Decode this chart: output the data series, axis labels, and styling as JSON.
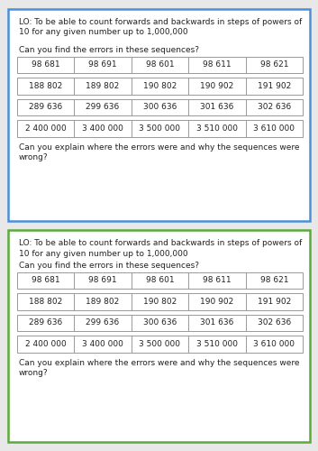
{
  "background": "#e8e8e8",
  "panel1": {
    "border_color": "#4a90d9",
    "lo_line1": "LO: To be able to count forwards and backwards in steps of powers of",
    "lo_line2": "10 for any given number up to 1,000,000",
    "question1": "Can you find the errors in these sequences?",
    "question2": "Can you explain where the errors were and why the sequences were",
    "question2b": "wrong?",
    "rows": [
      [
        "98 681",
        "98 691",
        "98 601",
        "98 611",
        "98 621"
      ],
      [
        "188 802",
        "189 802",
        "190 802",
        "190 902",
        "191 902"
      ],
      [
        "289 636",
        "299 636",
        "300 636",
        "301 636",
        "302 636"
      ],
      [
        "2 400 000",
        "3 400 000",
        "3 500 000",
        "3 510 000",
        "3 610 000"
      ]
    ],
    "gap_after_lo": true
  },
  "panel2": {
    "border_color": "#5aab3c",
    "lo_line1": "LO: To be able to count forwards and backwards in steps of powers of",
    "lo_line2": "10 for any given number up to 1,000,000",
    "question1": "Can you find the errors in these sequences?",
    "question2": "Can you explain where the errors were and why the sequences were",
    "question2b": "wrong?",
    "rows": [
      [
        "98 681",
        "98 691",
        "98 601",
        "98 611",
        "98 621"
      ],
      [
        "188 802",
        "189 802",
        "190 802",
        "190 902",
        "191 902"
      ],
      [
        "289 636",
        "299 636",
        "300 636",
        "301 636",
        "302 636"
      ],
      [
        "2 400 000",
        "3 400 000",
        "3 500 000",
        "3 510 000",
        "3 610 000"
      ]
    ],
    "gap_after_lo": false
  },
  "cell_fontsize": 6.5,
  "text_fontsize": 6.5,
  "lo_fontsize": 6.5
}
